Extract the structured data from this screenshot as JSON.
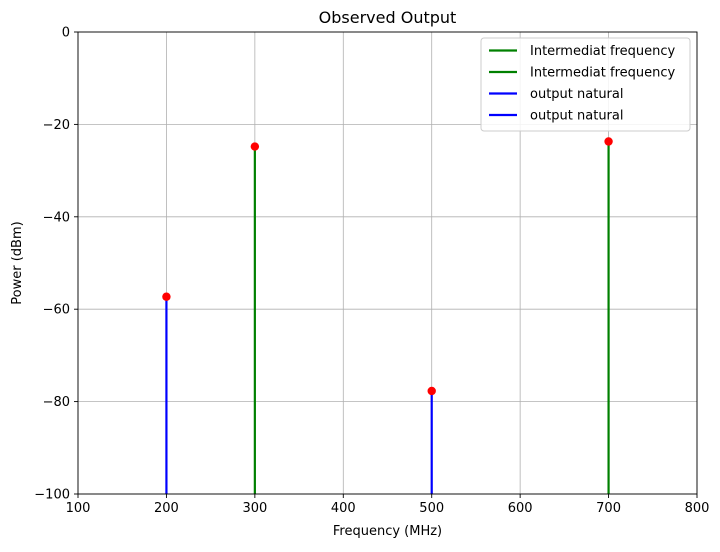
{
  "chart_data": {
    "type": "stem",
    "title": "Observed Output",
    "xlabel": "Frequency (MHz)",
    "ylabel": "Power (dBm)",
    "xlim": [
      100,
      800
    ],
    "ylim": [
      -100,
      0
    ],
    "x_ticks": [
      100,
      200,
      300,
      400,
      500,
      600,
      700,
      800
    ],
    "y_ticks": [
      0,
      -20,
      -40,
      -60,
      -80,
      -100
    ],
    "x_tick_labels": [
      "100",
      "200",
      "300",
      "400",
      "500",
      "600",
      "700",
      "800"
    ],
    "y_tick_labels": [
      "0",
      "−20",
      "−40",
      "−60",
      "−80",
      "−100"
    ],
    "grid": true,
    "legend_position": "upper-right",
    "marker_color": "#ff0000",
    "series": [
      {
        "name": "Intermediat frequency",
        "color": "#008000",
        "points": [
          {
            "x": 300,
            "y": -24.8
          }
        ]
      },
      {
        "name": "Intermediat frequency",
        "color": "#008000",
        "points": [
          {
            "x": 700,
            "y": -23.7
          }
        ]
      },
      {
        "name": "output natural",
        "color": "#0000ff",
        "points": [
          {
            "x": 200,
            "y": -57.3
          }
        ]
      },
      {
        "name": "output natural",
        "color": "#0000ff",
        "points": [
          {
            "x": 500,
            "y": -77.7
          }
        ]
      }
    ]
  }
}
